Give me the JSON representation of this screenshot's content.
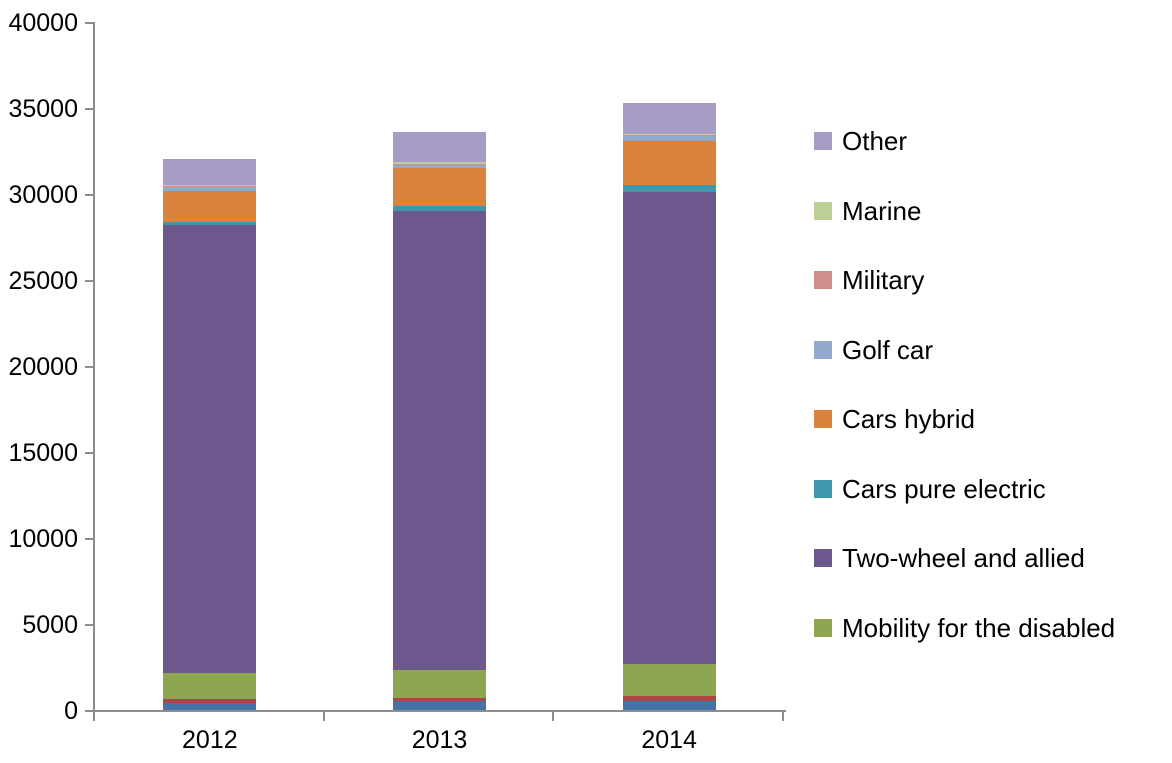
{
  "chart_data": {
    "type": "bar",
    "stacked": true,
    "title": "",
    "categories": [
      "2012",
      "2013",
      "2014"
    ],
    "series": [
      {
        "name": "(unlabeled blue segment)",
        "color": "#4573A7",
        "values": [
          400,
          500,
          520
        ],
        "in_legend": false
      },
      {
        "name": "(unlabeled red segment)",
        "color": "#AA4744",
        "values": [
          250,
          200,
          290
        ],
        "in_legend": false
      },
      {
        "name": "Mobility for the disabled",
        "color": "#8DA64F",
        "values": [
          1500,
          1600,
          1860
        ],
        "in_legend": true
      },
      {
        "name": "Two-wheel and allied",
        "color": "#6D588E",
        "values": [
          26050,
          26700,
          27470
        ],
        "in_legend": true
      },
      {
        "name": "Cars pure electric",
        "color": "#3F96AD",
        "values": [
          200,
          330,
          390
        ],
        "in_legend": true
      },
      {
        "name": "Cars hybrid",
        "color": "#D9833C",
        "values": [
          1750,
          2180,
          2570
        ],
        "in_legend": true
      },
      {
        "name": "Golf car",
        "color": "#93A9CE",
        "values": [
          230,
          200,
          250
        ],
        "in_legend": true
      },
      {
        "name": "Military",
        "color": "#D18F8C",
        "values": [
          60,
          60,
          70
        ],
        "in_legend": true
      },
      {
        "name": "Marine",
        "color": "#BCCF96",
        "values": [
          110,
          80,
          80
        ],
        "in_legend": true
      },
      {
        "name": "Other",
        "color": "#A79CC5",
        "values": [
          1500,
          1750,
          1800
        ],
        "in_legend": true
      }
    ],
    "stack_order": "series listed bottom-to-top as stacked in each bar",
    "approx_totals": [
      32050,
      33600,
      35300
    ],
    "y_axis": {
      "min": 0,
      "max": 40000,
      "step": 5000,
      "tick_labels": [
        "0",
        "5000",
        "10000",
        "15000",
        "20000",
        "25000",
        "30000",
        "35000",
        "40000"
      ]
    },
    "x_axis": {
      "tick_labels": [
        "2012",
        "2013",
        "2014"
      ]
    },
    "legend": {
      "position": "right",
      "items_top_to_bottom": [
        "Other",
        "Marine",
        "Military",
        "Golf car",
        "Cars hybrid",
        "Cars pure electric",
        "Two-wheel and allied",
        "Mobility for the disabled"
      ]
    },
    "grid": false,
    "colors": {
      "axis_line": "#8C8C8C",
      "text": "#000000",
      "background": "#FFFFFF"
    }
  }
}
